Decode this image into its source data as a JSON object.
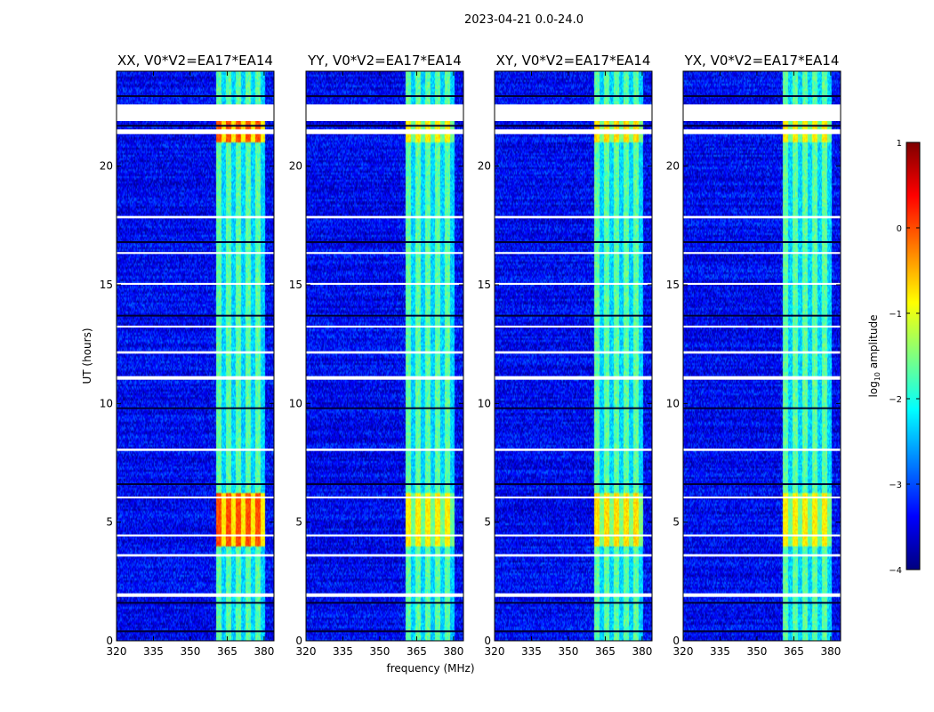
{
  "chart_data": {
    "type": "heatmap",
    "suptitle": "2023-04-21 0.0-24.0",
    "xlabel": "frequency (MHz)",
    "ylabel": "UT (hours)",
    "xlim": [
      320,
      384
    ],
    "ylim": [
      0,
      24
    ],
    "xticks": [
      320,
      335,
      350,
      365,
      380
    ],
    "yticks": [
      0,
      5,
      10,
      15,
      20
    ],
    "colorbar": {
      "label": "log10 amplitude",
      "label_display": "log",
      "label_sub": "10",
      "label_tail": " amplitude",
      "range": [
        -4,
        1
      ],
      "ticks": [
        "1",
        "0",
        "−1",
        "−2",
        "−3",
        "−4"
      ],
      "colormap": "jet",
      "stops": [
        "#00007f",
        "#0000ff",
        "#007fff",
        "#00ffff",
        "#7fff7f",
        "#ffff00",
        "#ff7f00",
        "#ff0000",
        "#7f0000"
      ]
    },
    "panels": [
      {
        "title": "XX, V0*V2=EA17*EA14",
        "peak_level": -0.2
      },
      {
        "title": "YY, V0*V2=EA17*EA14",
        "peak_level": -1.0
      },
      {
        "title": "XY, V0*V2=EA17*EA14",
        "peak_level": -0.9
      },
      {
        "title": "YX, V0*V2=EA17*EA14",
        "peak_level": -1.0
      }
    ],
    "rfi_band_mhz": [
      360.5,
      380.5
    ],
    "background_level": -3.4,
    "band_level": -2.0,
    "flagged_ut_ranges": [
      [
        21.9,
        22.6
      ],
      [
        21.35,
        21.55
      ],
      [
        11.0,
        11.15
      ],
      [
        1.85,
        2.0
      ],
      [
        3.55,
        3.65
      ],
      [
        8.0,
        8.1
      ],
      [
        12.1,
        12.2
      ],
      [
        15.0,
        15.08
      ],
      [
        17.8,
        17.9
      ],
      [
        16.3,
        16.38
      ],
      [
        6.0,
        6.08
      ],
      [
        4.4,
        4.48
      ],
      [
        13.2,
        13.28
      ]
    ],
    "dark_ut_lines": [
      22.95,
      21.7,
      16.8,
      13.7,
      9.8,
      6.6,
      1.6,
      0.4
    ]
  }
}
